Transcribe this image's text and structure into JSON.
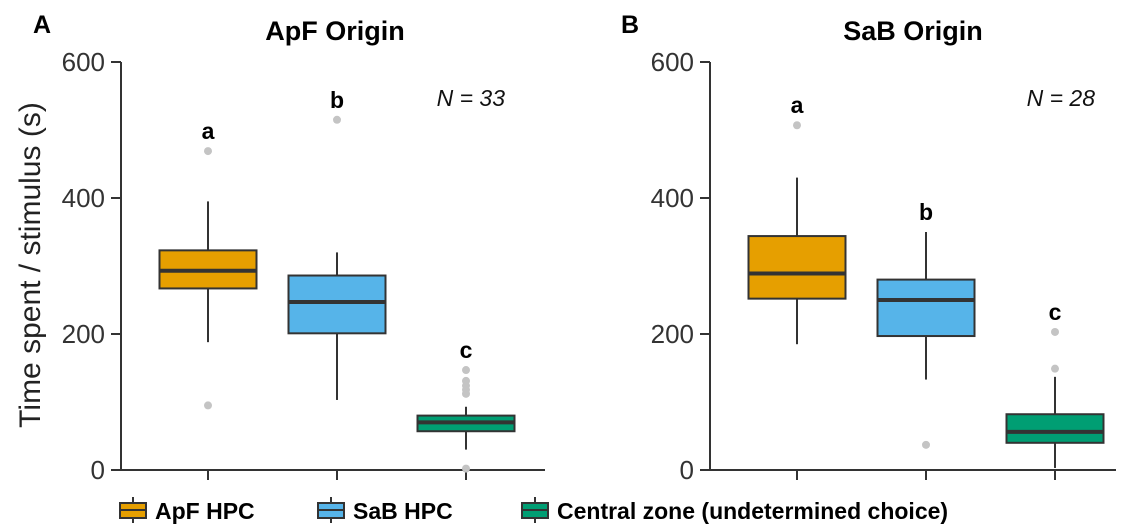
{
  "ylabel": "Time spent / stimulus (s)",
  "legend": [
    {
      "label": "ApF HPC",
      "color": "#E69F00"
    },
    {
      "label": "SaB HPC",
      "color": "#56B4E9"
    },
    {
      "label": "Central zone (undetermined choice)",
      "color": "#009E73"
    }
  ],
  "chart_data": [
    {
      "type": "box",
      "panel_label": "A",
      "title": "ApF Origin",
      "annotation": "N = 33",
      "ylim": [
        0,
        600
      ],
      "yticks": [
        0,
        200,
        400,
        600
      ],
      "categories": [
        "ApF HPC",
        "SaB HPC",
        "Central zone (undetermined choice)"
      ],
      "boxes": [
        {
          "name": "ApF HPC",
          "color": "#E69F00",
          "whisker_low": 188,
          "q1": 267,
          "median": 293,
          "q3": 323,
          "whisker_high": 395,
          "outliers": [
            95,
            469
          ],
          "letter": "a"
        },
        {
          "name": "SaB HPC",
          "color": "#56B4E9",
          "whisker_low": 103,
          "q1": 201,
          "median": 247,
          "q3": 286,
          "whisker_high": 320,
          "outliers": [
            515
          ],
          "letter": "b"
        },
        {
          "name": "Central zone (undetermined choice)",
          "color": "#009E73",
          "whisker_low": 30,
          "q1": 57,
          "median": 70,
          "q3": 80,
          "whisker_high": 93,
          "outliers": [
            2,
            112,
            118,
            124,
            131,
            147
          ],
          "letter": "c"
        }
      ]
    },
    {
      "type": "box",
      "panel_label": "B",
      "title": "SaB Origin",
      "annotation": "N = 28",
      "ylim": [
        0,
        600
      ],
      "yticks": [
        0,
        200,
        400,
        600
      ],
      "categories": [
        "ApF HPC",
        "SaB HPC",
        "Central zone (undetermined choice)"
      ],
      "boxes": [
        {
          "name": "ApF HPC",
          "color": "#E69F00",
          "whisker_low": 185,
          "q1": 252,
          "median": 289,
          "q3": 344,
          "whisker_high": 430,
          "outliers": [
            507
          ],
          "letter": "a"
        },
        {
          "name": "SaB HPC",
          "color": "#56B4E9",
          "whisker_low": 133,
          "q1": 197,
          "median": 250,
          "q3": 280,
          "whisker_high": 350,
          "outliers": [
            37
          ],
          "letter": "b"
        },
        {
          "name": "Central zone (undetermined choice)",
          "color": "#009E73",
          "whisker_low": 3,
          "q1": 40,
          "median": 56,
          "q3": 82,
          "whisker_high": 137,
          "outliers": [
            149,
            203
          ],
          "letter": "c"
        }
      ]
    }
  ]
}
